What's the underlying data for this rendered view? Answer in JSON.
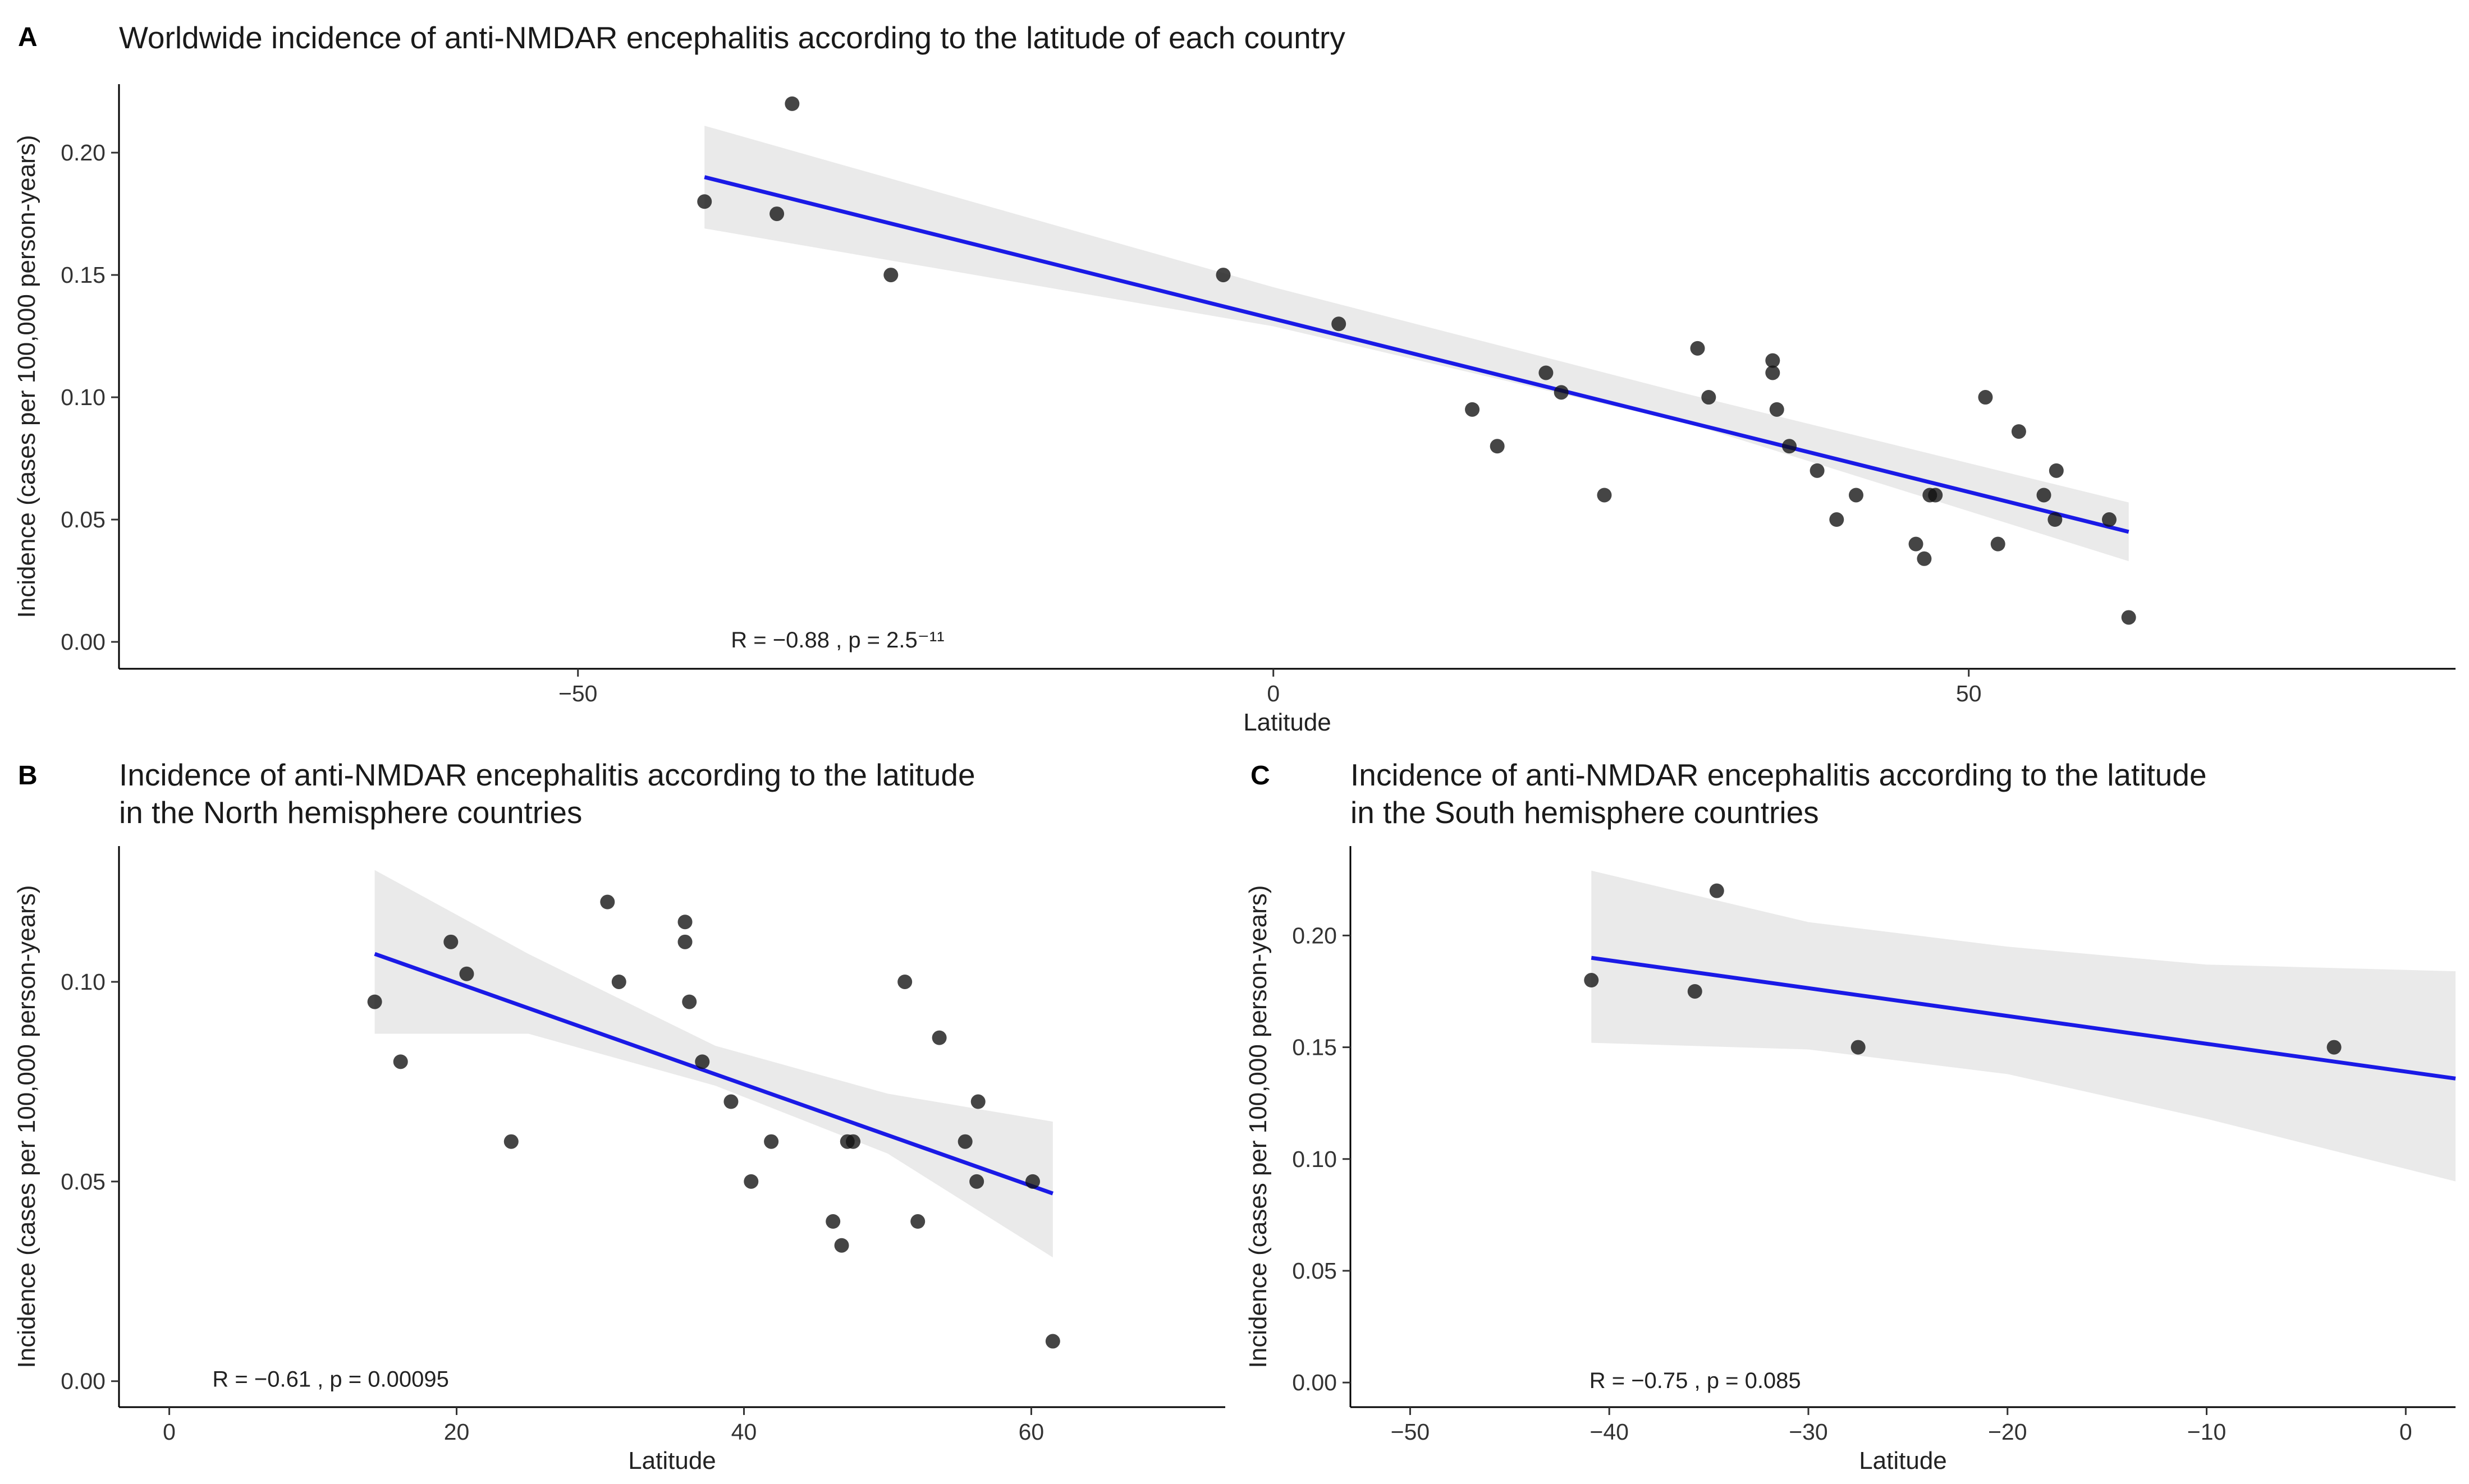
{
  "chart_data": [
    {
      "type": "scatter",
      "panel": "A",
      "title_lines": [
        "Worldwide incidence of anti-NMDAR encephalitis according to the latitude of each country"
      ],
      "xlabel": "Latitude",
      "ylabel": "Incidence (cases per 100,000 person-years)",
      "xlim": [
        -83,
        85
      ],
      "ylim": [
        -0.011,
        0.228
      ],
      "xticks": [
        -50,
        0,
        50
      ],
      "xtick_labels": [
        "−50",
        "0",
        "50"
      ],
      "yticks": [
        0.0,
        0.05,
        0.1,
        0.15,
        0.2
      ],
      "ytick_labels": [
        "0.00",
        "0.05",
        "0.10",
        "0.15",
        "0.20"
      ],
      "stat_text": "R = −0.88 , p = 2.5⁻¹¹",
      "stat_pos": [
        -39,
        0.0
      ],
      "points": [
        {
          "x": -40.9,
          "y": 0.18
        },
        {
          "x": -35.7,
          "y": 0.175
        },
        {
          "x": -34.6,
          "y": 0.22
        },
        {
          "x": -27.5,
          "y": 0.15
        },
        {
          "x": -3.6,
          "y": 0.15
        },
        {
          "x": 4.7,
          "y": 0.13
        },
        {
          "x": 14.3,
          "y": 0.095
        },
        {
          "x": 16.1,
          "y": 0.08
        },
        {
          "x": 19.6,
          "y": 0.11
        },
        {
          "x": 20.7,
          "y": 0.102
        },
        {
          "x": 23.8,
          "y": 0.06
        },
        {
          "x": 30.5,
          "y": 0.12
        },
        {
          "x": 31.3,
          "y": 0.1
        },
        {
          "x": 35.9,
          "y": 0.115
        },
        {
          "x": 35.9,
          "y": 0.11
        },
        {
          "x": 36.2,
          "y": 0.095
        },
        {
          "x": 37.1,
          "y": 0.08
        },
        {
          "x": 39.1,
          "y": 0.07
        },
        {
          "x": 40.5,
          "y": 0.05
        },
        {
          "x": 41.9,
          "y": 0.06
        },
        {
          "x": 46.2,
          "y": 0.04
        },
        {
          "x": 46.8,
          "y": 0.034
        },
        {
          "x": 47.2,
          "y": 0.06
        },
        {
          "x": 47.6,
          "y": 0.06
        },
        {
          "x": 51.2,
          "y": 0.1
        },
        {
          "x": 52.1,
          "y": 0.04
        },
        {
          "x": 53.6,
          "y": 0.086
        },
        {
          "x": 55.4,
          "y": 0.06
        },
        {
          "x": 56.3,
          "y": 0.07
        },
        {
          "x": 56.2,
          "y": 0.05
        },
        {
          "x": 60.1,
          "y": 0.05
        },
        {
          "x": 61.5,
          "y": 0.01
        }
      ],
      "fit": {
        "x": [
          -40.9,
          61.5
        ],
        "y": [
          0.19,
          0.045
        ]
      },
      "band": {
        "x": [
          -40.9,
          0,
          30,
          61.5
        ],
        "lower": [
          0.169,
          0.129,
          0.089,
          0.033
        ],
        "upper": [
          0.211,
          0.145,
          0.101,
          0.057
        ]
      }
    },
    {
      "type": "scatter",
      "panel": "B",
      "title_lines": [
        "Incidence of anti-NMDAR encephalitis according to the latitude",
        "in the North hemisphere countries"
      ],
      "xlabel": "Latitude",
      "ylabel": "Incidence (cases per 100,000 person-years)",
      "xlim": [
        -3.5,
        73.5
      ],
      "ylim": [
        -0.0065,
        0.134
      ],
      "xticks": [
        0,
        20,
        40,
        60
      ],
      "xtick_labels": [
        "0",
        "20",
        "40",
        "60"
      ],
      "yticks": [
        0.0,
        0.05,
        0.1
      ],
      "ytick_labels": [
        "0.00",
        "0.05",
        "0.10"
      ],
      "stat_text": "R = −0.61 , p = 0.00095",
      "stat_pos": [
        3,
        0.0
      ],
      "points": [
        {
          "x": 14.3,
          "y": 0.095
        },
        {
          "x": 16.1,
          "y": 0.08
        },
        {
          "x": 19.6,
          "y": 0.11
        },
        {
          "x": 20.7,
          "y": 0.102
        },
        {
          "x": 23.8,
          "y": 0.06
        },
        {
          "x": 30.5,
          "y": 0.12
        },
        {
          "x": 31.3,
          "y": 0.1
        },
        {
          "x": 35.9,
          "y": 0.115
        },
        {
          "x": 35.9,
          "y": 0.11
        },
        {
          "x": 36.2,
          "y": 0.095
        },
        {
          "x": 37.1,
          "y": 0.08
        },
        {
          "x": 39.1,
          "y": 0.07
        },
        {
          "x": 40.5,
          "y": 0.05
        },
        {
          "x": 41.9,
          "y": 0.06
        },
        {
          "x": 46.2,
          "y": 0.04
        },
        {
          "x": 46.8,
          "y": 0.034
        },
        {
          "x": 47.2,
          "y": 0.06
        },
        {
          "x": 47.6,
          "y": 0.06
        },
        {
          "x": 51.2,
          "y": 0.1
        },
        {
          "x": 52.1,
          "y": 0.04
        },
        {
          "x": 53.6,
          "y": 0.086
        },
        {
          "x": 55.4,
          "y": 0.06
        },
        {
          "x": 56.3,
          "y": 0.07
        },
        {
          "x": 56.2,
          "y": 0.05
        },
        {
          "x": 60.1,
          "y": 0.05
        },
        {
          "x": 61.5,
          "y": 0.01
        }
      ],
      "fit": {
        "x": [
          14.3,
          61.5
        ],
        "y": [
          0.107,
          0.047
        ]
      },
      "band": {
        "x": [
          14.3,
          25,
          38,
          50,
          61.5
        ],
        "lower": [
          0.087,
          0.087,
          0.074,
          0.057,
          0.031
        ],
        "upper": [
          0.128,
          0.107,
          0.084,
          0.072,
          0.065
        ]
      }
    },
    {
      "type": "scatter",
      "panel": "C",
      "title_lines": [
        "Incidence of anti-NMDAR encephalitis according to the latitude",
        "in the South hemisphere countries"
      ],
      "xlabel": "Latitude",
      "ylabel": "Incidence (cases per 100,000 person-years)",
      "xlim": [
        -53.0,
        2.5
      ],
      "ylim": [
        -0.011,
        0.24
      ],
      "xticks": [
        -50,
        -40,
        -30,
        -20,
        -10,
        0
      ],
      "xtick_labels": [
        "−50",
        "−40",
        "−30",
        "−20",
        "−10",
        "0"
      ],
      "yticks": [
        0.0,
        0.05,
        0.1,
        0.15,
        0.2
      ],
      "ytick_labels": [
        "0.00",
        "0.05",
        "0.10",
        "0.15",
        "0.20"
      ],
      "stat_text": "R = −0.75 , p = 0.085",
      "stat_pos": [
        -41.0,
        0.0
      ],
      "points": [
        {
          "x": -40.9,
          "y": 0.18
        },
        {
          "x": -35.7,
          "y": 0.175
        },
        {
          "x": -34.6,
          "y": 0.22
        },
        {
          "x": -27.5,
          "y": 0.15
        },
        {
          "x": -3.6,
          "y": 0.15
        }
      ],
      "fit": {
        "x": [
          -40.9,
          2.5
        ],
        "y": [
          0.19,
          0.136
        ]
      },
      "band": {
        "x": [
          -40.9,
          -30,
          -20,
          -10,
          2.5
        ],
        "lower": [
          0.152,
          0.149,
          0.138,
          0.118,
          0.09
        ],
        "upper": [
          0.229,
          0.206,
          0.195,
          0.187,
          0.184
        ]
      }
    }
  ]
}
